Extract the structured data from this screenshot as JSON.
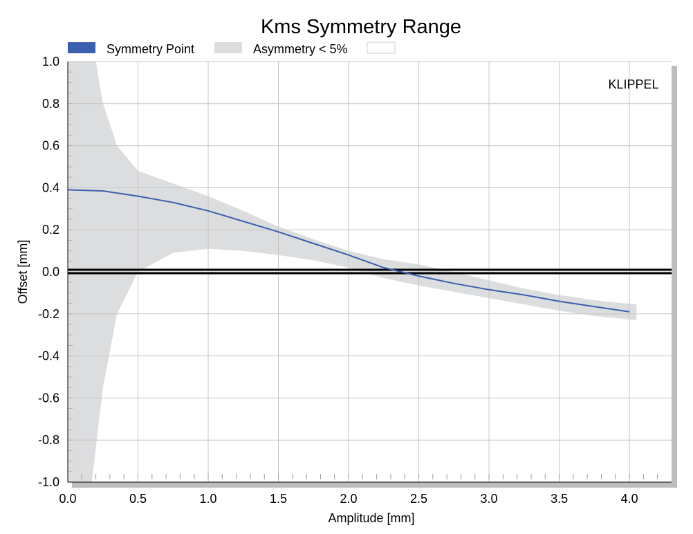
{
  "chart_data": {
    "type": "line",
    "title": "Kms Symmetry Range",
    "xlabel": "Amplitude [mm]",
    "ylabel": "Offset [mm]",
    "annotation": "KLIPPEL",
    "xlim": [
      0,
      4.3
    ],
    "ylim": [
      -1.0,
      1.0
    ],
    "x_ticks": [
      "0.0",
      "0.5",
      "1.0",
      "1.5",
      "2.0",
      "2.5",
      "3.0",
      "3.5",
      "4.0"
    ],
    "y_ticks": [
      "1.0",
      "0.8",
      "0.6",
      "0.4",
      "0.2",
      "0.0",
      "-0.2",
      "-0.4",
      "-0.6",
      "-0.8",
      "-1.0"
    ],
    "grid": true,
    "legend_position": "top-left",
    "legend": [
      {
        "name": "Symmetry Point",
        "color": "#3a5fae"
      },
      {
        "name": "Asymmetry < 5%",
        "color": "#dcdddf"
      },
      {
        "name": "",
        "color": "#ffffff"
      }
    ],
    "reference_line": {
      "y": 0.0,
      "color": "#000000"
    },
    "series": [
      {
        "name": "Symmetry Point",
        "color": "#3a5fae",
        "x": [
          0.0,
          0.25,
          0.5,
          0.75,
          1.0,
          1.25,
          1.5,
          1.75,
          2.0,
          2.25,
          2.5,
          2.75,
          3.0,
          3.25,
          3.5,
          3.75,
          4.0
        ],
        "y": [
          0.39,
          0.385,
          0.36,
          0.33,
          0.29,
          0.24,
          0.19,
          0.135,
          0.08,
          0.02,
          -0.02,
          -0.055,
          -0.085,
          -0.11,
          -0.14,
          -0.165,
          -0.19
        ]
      },
      {
        "name": "Asymmetry < 5%",
        "type": "area",
        "color": "#dcdddf",
        "x": [
          0.17,
          0.25,
          0.35,
          0.5,
          0.75,
          1.0,
          1.25,
          1.5,
          1.75,
          2.0,
          2.25,
          2.5,
          2.75,
          3.0,
          3.25,
          3.5,
          3.75,
          4.05
        ],
        "upper": [
          1.0,
          0.8,
          0.6,
          0.48,
          0.42,
          0.36,
          0.29,
          0.215,
          0.155,
          0.1,
          0.06,
          0.035,
          0.0,
          -0.04,
          -0.08,
          -0.11,
          -0.135,
          -0.155
        ],
        "lower": [
          -1.0,
          -0.55,
          -0.2,
          0.0,
          0.09,
          0.11,
          0.1,
          0.08,
          0.055,
          0.02,
          -0.03,
          -0.065,
          -0.095,
          -0.125,
          -0.155,
          -0.185,
          -0.21,
          -0.23
        ]
      }
    ]
  }
}
